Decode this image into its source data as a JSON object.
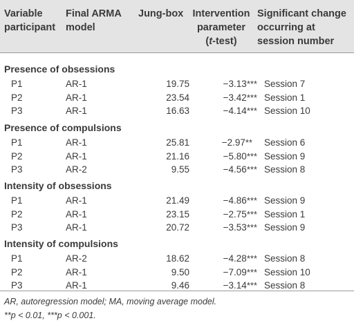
{
  "header": {
    "col1": [
      "Variable",
      "participant"
    ],
    "col2": [
      "Final ARMA",
      "model"
    ],
    "col3": [
      "Jung-box"
    ],
    "col4": [
      "Intervention",
      "parameter"
    ],
    "col4_t_open": "(",
    "col4_t": "t",
    "col4_t_rest": "-test)",
    "col5": [
      "Significant change",
      "occurring  at",
      "session number"
    ]
  },
  "sections": [
    {
      "title": "Presence of obsessions",
      "rows": [
        {
          "participant": "P1",
          "model": "AR-1",
          "jung": "19.75",
          "param": "−3.13",
          "stars": "***",
          "session": "Session 7"
        },
        {
          "participant": "P2",
          "model": "AR-1",
          "jung": "23.54",
          "param": "−3.42",
          "stars": "***",
          "session": "Session 1"
        },
        {
          "participant": "P3",
          "model": "AR-1",
          "jung": "16.63",
          "param": "−4.14",
          "stars": "***",
          "session": "Session 10"
        }
      ]
    },
    {
      "title": "Presence of compulsions",
      "rows": [
        {
          "participant": "P1",
          "model": "AR-1",
          "jung": "25.81",
          "param": "−2.97",
          "stars": "**",
          "session": "Session 6"
        },
        {
          "participant": "P2",
          "model": "AR-1",
          "jung": "21.16",
          "param": "−5.80",
          "stars": "***",
          "session": "Session 9"
        },
        {
          "participant": "P3",
          "model": "AR-2",
          "jung": "9.55",
          "param": "−4.56",
          "stars": "***",
          "session": "Session 8"
        }
      ]
    },
    {
      "title": "Intensity of obsessions",
      "rows": [
        {
          "participant": "P1",
          "model": "AR-1",
          "jung": "21.49",
          "param": "−4.86",
          "stars": "***",
          "session": "Session 9"
        },
        {
          "participant": "P2",
          "model": "AR-1",
          "jung": "23.15",
          "param": "−2.75",
          "stars": "***",
          "session": "Session 1"
        },
        {
          "participant": "P3",
          "model": "AR-1",
          "jung": "20.72",
          "param": "−3.53",
          "stars": "***",
          "session": "Session 9"
        }
      ]
    },
    {
      "title": "Intensity of compulsions",
      "rows": [
        {
          "participant": "P1",
          "model": "AR-2",
          "jung": "18.62",
          "param": "−4.28",
          "stars": "***",
          "session": "Session 8"
        },
        {
          "participant": "P2",
          "model": "AR-1",
          "jung": "9.50",
          "param": "−7.09",
          "stars": "***",
          "session": "Session 10"
        },
        {
          "participant": "P3",
          "model": "AR-1",
          "jung": "9.46",
          "param": "−3.14",
          "stars": "***",
          "session": "Session 8"
        }
      ]
    }
  ],
  "footnotes": [
    "AR, autoregression model; MA, moving average model.",
    "**p < 0.01, ***p < 0.001."
  ]
}
